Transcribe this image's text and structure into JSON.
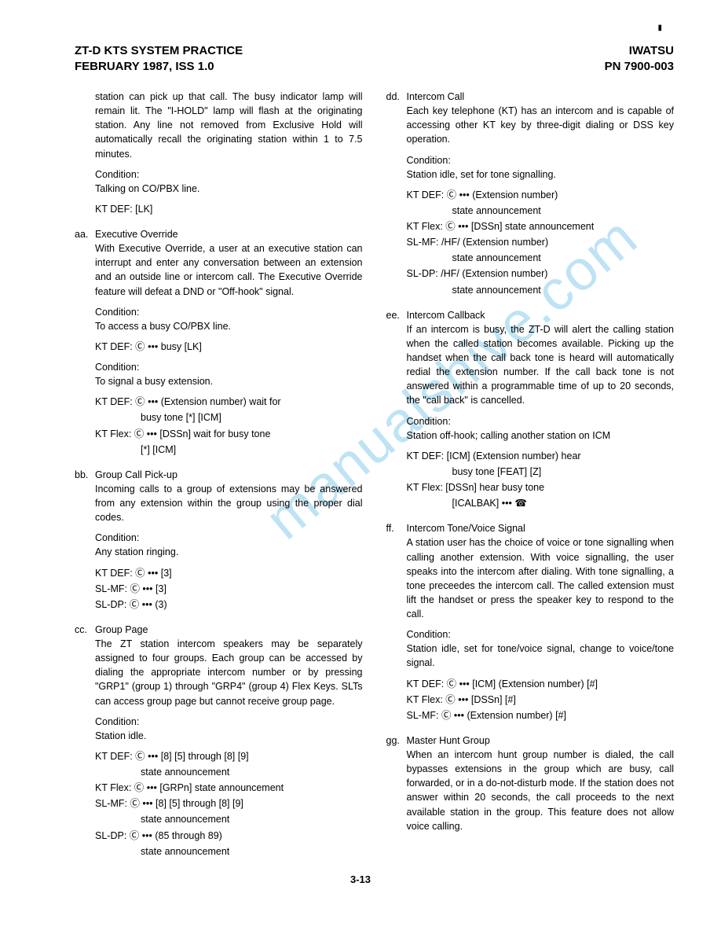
{
  "header": {
    "left_line1": "ZT-D KTS SYSTEM PRACTICE",
    "left_line2": "FEBRUARY 1987, ISS 1.0",
    "right_line1": "IWATSU",
    "right_line2": "PN 7900-003"
  },
  "watermark": "manualshive.com",
  "page_number": "3-13",
  "left_col": {
    "intro": "station can pick up that call. The busy indicator lamp will remain lit. The \"I-HOLD\" lamp will flash at the originating station. Any line not removed from Exclusive Hold will automatically recall the originating station within 1 to 7.5 minutes.",
    "intro_cond_label": "Condition:",
    "intro_cond": "Talking on CO/PBX line.",
    "intro_kt": "KT DEF: [LK]",
    "aa": {
      "label": "aa.",
      "title": "Executive Override",
      "body": "With Executive Override, a user at an executive station can interrupt and enter any conversation between an extension and an outside line or intercom call. The Executive Override feature will defeat a DND or \"Off-hook\" signal.",
      "cond1_label": "Condition:",
      "cond1": "To access a busy CO/PBX line.",
      "kt1": "KT DEF: Ⓒ ••• busy [LK]",
      "cond2_label": "Condition:",
      "cond2": "To signal a busy extension.",
      "kt2a": "KT DEF: Ⓒ ••• (Extension number) wait for",
      "kt2a_cont": "busy tone [*] [ICM]",
      "kt2b": "KT Flex: Ⓒ ••• [DSSn] wait for busy tone",
      "kt2b_cont": "[*] [ICM]"
    },
    "bb": {
      "label": "bb.",
      "title": "Group Call Pick-up",
      "body": "Incoming calls to a group of extensions may be answered from any extension within the group using the proper dial codes.",
      "cond_label": "Condition:",
      "cond": "Any station ringing.",
      "kt1": "KT DEF: Ⓒ ••• [3]",
      "kt2": "SL-MF:   Ⓒ ••• [3]",
      "kt3": "SL-DP:   Ⓒ ••• (3)"
    },
    "cc": {
      "label": "cc.",
      "title": "Group Page",
      "body": "The ZT station intercom speakers may be separately assigned to four groups. Each group can be accessed by dialing the appropriate intercom number or by pressing \"GRP1\" (group 1) through \"GRP4\" (group 4) Flex Keys. SLTs can access group page but cannot receive group page.",
      "cond_label": "Condition:",
      "cond": "Station idle.",
      "kt1": "KT DEF: Ⓒ ••• [8] [5] through [8] [9]",
      "kt1_cont": "state announcement",
      "kt2": "KT Flex: Ⓒ ••• [GRPn] state announcement",
      "kt3": "SL-MF:   Ⓒ ••• [8] [5] through [8] [9]",
      "kt3_cont": "state announcement",
      "kt4": "SL-DP:   Ⓒ ••• (85 through 89)",
      "kt4_cont": "state announcement"
    }
  },
  "right_col": {
    "dd": {
      "label": "dd.",
      "title": "Intercom Call",
      "body": "Each key telephone (KT) has an intercom and is capable of accessing other KT key by three-digit dialing or DSS key operation.",
      "cond_label": "Condition:",
      "cond": "Station idle, set for tone signalling.",
      "kt1": "KT DEF: Ⓒ ••• (Extension number)",
      "kt1_cont": "state announcement",
      "kt2": "KT Flex: Ⓒ ••• [DSSn] state announcement",
      "kt3": "SL-MF:  /HF/ (Extension number)",
      "kt3_cont": "state announcement",
      "kt4": "SL-DP:  /HF/ (Extension number)",
      "kt4_cont": "state announcement"
    },
    "ee": {
      "label": "ee.",
      "title": "Intercom Callback",
      "body": "If an intercom is busy, the ZT-D will alert the calling station when the called station becomes available. Picking up the handset when the call back tone is heard will automatically redial the extension number. If the call back tone is not answered within a programmable time of up to 20 seconds, the \"call back\" is cancelled.",
      "cond_label": "Condition:",
      "cond": "Station off-hook; calling another station on ICM",
      "kt1": "KT DEF: [ICM] (Extension number) hear",
      "kt1_cont": "busy tone [FEAT] [Z]",
      "kt2": "KT Flex: [DSSn] hear busy tone",
      "kt2_cont": "[ICALBAK] ••• ☎"
    },
    "ff": {
      "label": "ff.",
      "title": "Intercom Tone/Voice Signal",
      "body": "A station user has the choice of voice or tone signalling when calling another extension. With voice signalling, the user speaks into the intercom after dialing. With tone signalling, a tone preceedes the intercom call. The called extension must lift the handset or press the speaker key to respond to the call.",
      "cond_label": "Condition:",
      "cond": "Station idle, set for tone/voice signal, change to voice/tone signal.",
      "kt1": "KT DEF: Ⓒ ••• [ICM] (Extension number) [#]",
      "kt2": "KT Flex: Ⓒ ••• [DSSn] [#]",
      "kt3": "SL-MF:   Ⓒ ••• (Extension number) [#]"
    },
    "gg": {
      "label": "gg.",
      "title": "Master Hunt Group",
      "body": "When an intercom hunt group number is dialed, the call bypasses extensions in the group which are busy, call forwarded, or in a do-not-disturb mode. If the station does not answer within 20 seconds, the call proceeds to the next available station in the group. This feature does not allow voice calling."
    }
  }
}
